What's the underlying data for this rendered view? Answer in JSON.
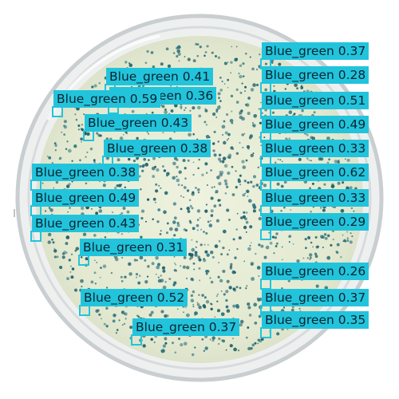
{
  "image": {
    "subject": "Petri dish with blue-green bacterial colonies",
    "colors": {
      "background": "#ffffff",
      "agar": "#e6ecd5",
      "dish_rim": "#c9ced0",
      "colony": "#1f5e6a",
      "detection_accent": "#22c4dc",
      "label_text": "#0b2430"
    }
  },
  "detections": [
    {
      "class": "Blue_green",
      "score": "0.37"
    },
    {
      "class": "Blue_green",
      "score": "0.41"
    },
    {
      "class": "Blue_green",
      "score": "0.28"
    },
    {
      "class": "Blue_green",
      "score": "0.36"
    },
    {
      "class": "Blue_green",
      "score": "0.59"
    },
    {
      "class": "Blue_green",
      "score": "0.51"
    },
    {
      "class": "Blue_green",
      "score": "0.43"
    },
    {
      "class": "Blue_green",
      "score": "0.49"
    },
    {
      "class": "Blue_green",
      "score": "0.38"
    },
    {
      "class": "Blue_green",
      "score": "0.33"
    },
    {
      "class": "Blue_green",
      "score": "0.38"
    },
    {
      "class": "Blue_green",
      "score": "0.62"
    },
    {
      "class": "Blue_green",
      "score": "0.49"
    },
    {
      "class": "Blue_green",
      "score": "0.33"
    },
    {
      "class": "Blue_green",
      "score": "0.43"
    },
    {
      "class": "Blue_green",
      "score": "0.29"
    },
    {
      "class": "Blue_green",
      "score": "0.31"
    },
    {
      "class": "Blue_green",
      "score": "0.26"
    },
    {
      "class": "Blue_green",
      "score": "0.52"
    },
    {
      "class": "Blue_green",
      "score": "0.37"
    },
    {
      "class": "Blue_green",
      "score": "0.37"
    },
    {
      "class": "Blue_green",
      "score": "0.35"
    }
  ]
}
